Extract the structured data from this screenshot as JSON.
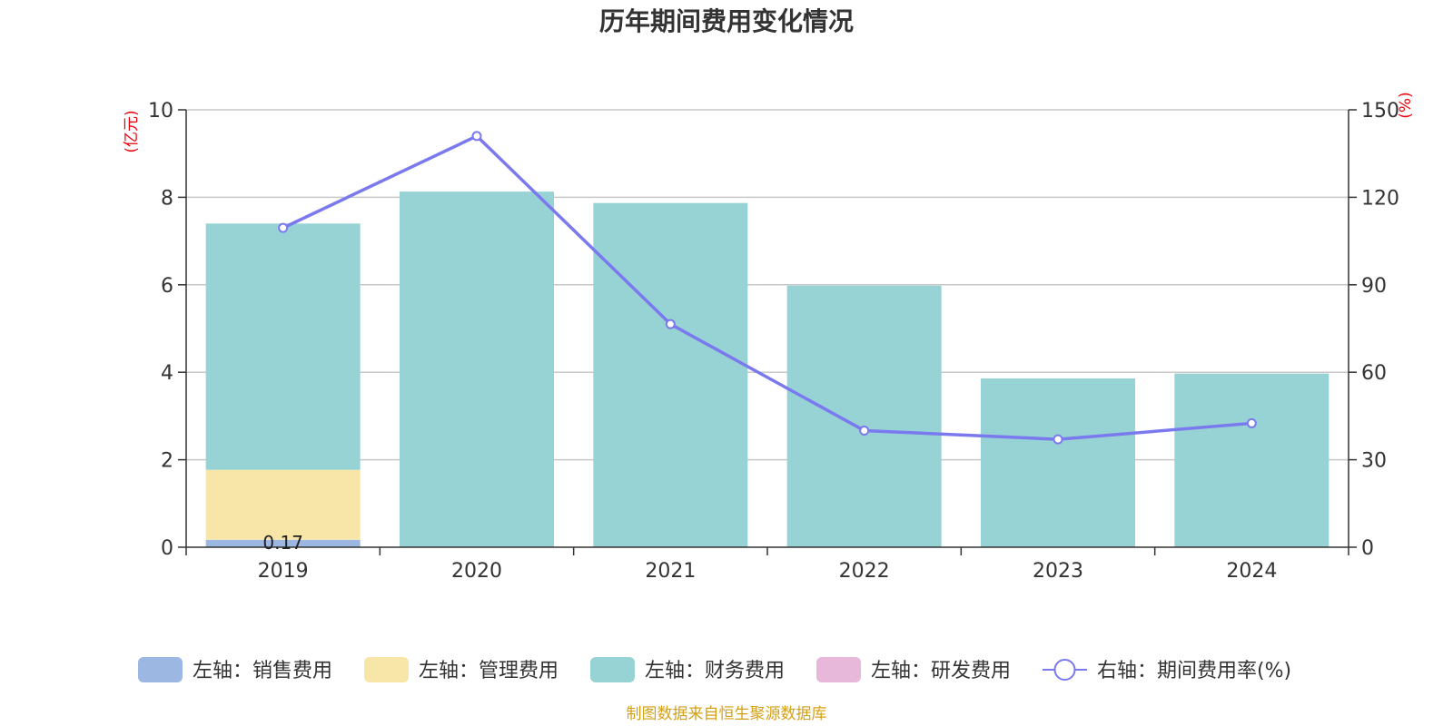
{
  "chart_data": {
    "type": "bar",
    "title": "历年期间费用变化情况",
    "categories": [
      "2019",
      "2020",
      "2021",
      "2022",
      "2023",
      "2024"
    ],
    "left_axis": {
      "unit": "(亿元)",
      "ylim": [
        0,
        10
      ],
      "ticks": [
        "0",
        "2",
        "4",
        "6",
        "8",
        "10"
      ]
    },
    "right_axis": {
      "unit": "(%)",
      "ylim": [
        0,
        150
      ],
      "ticks": [
        "0",
        "30",
        "60",
        "90",
        "120",
        "150"
      ]
    },
    "grid": true,
    "stacked": true,
    "series": [
      {
        "name": "左轴：销售费用",
        "axis": "left",
        "kind": "bar",
        "color": "#9db7e3",
        "values": [
          0.17,
          0,
          0,
          0,
          0,
          0
        ]
      },
      {
        "name": "左轴：管理费用",
        "axis": "left",
        "kind": "bar",
        "color": "#f8e6a8",
        "values": [
          1.6,
          0,
          0,
          0,
          0,
          0
        ]
      },
      {
        "name": "左轴：财务费用",
        "axis": "left",
        "kind": "bar",
        "color": "#97d3d5",
        "values": [
          5.63,
          8.13,
          7.87,
          5.98,
          3.86,
          3.97
        ]
      },
      {
        "name": "左轴：研发费用",
        "axis": "left",
        "kind": "bar",
        "color": "#e8b8da",
        "values": [
          0,
          0,
          0,
          0,
          0,
          0
        ]
      },
      {
        "name": "右轴：期间费用率(%)",
        "axis": "right",
        "kind": "line",
        "color": "#7b79ee",
        "values": [
          109.5,
          141,
          76.5,
          40,
          37,
          42.5
        ]
      }
    ],
    "data_labels": [
      {
        "category": "2019",
        "series": "左轴：销售费用",
        "text": "0.17"
      }
    ],
    "legend_position": "bottom"
  },
  "footer": {
    "source": "制图数据来自恒生聚源数据库"
  }
}
